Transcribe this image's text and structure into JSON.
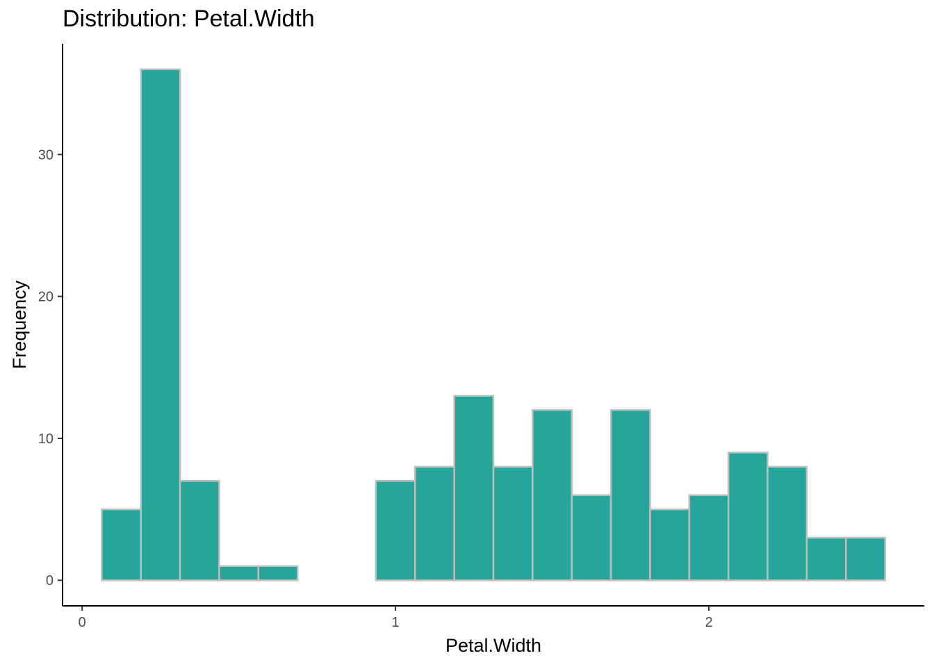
{
  "chart_data": {
    "type": "bar",
    "title": "Distribution: Petal.Width",
    "xlabel": "Petal.Width",
    "ylabel": "Frequency",
    "bins": [
      {
        "x0": 0.0625,
        "x1": 0.1875,
        "count": 5
      },
      {
        "x0": 0.1875,
        "x1": 0.3125,
        "count": 36
      },
      {
        "x0": 0.3125,
        "x1": 0.4375,
        "count": 7
      },
      {
        "x0": 0.4375,
        "x1": 0.5625,
        "count": 1
      },
      {
        "x0": 0.5625,
        "x1": 0.6875,
        "count": 1
      },
      {
        "x0": 0.6875,
        "x1": 0.8125,
        "count": 0
      },
      {
        "x0": 0.8125,
        "x1": 0.9375,
        "count": 0
      },
      {
        "x0": 0.9375,
        "x1": 1.0625,
        "count": 7
      },
      {
        "x0": 1.0625,
        "x1": 1.1875,
        "count": 8
      },
      {
        "x0": 1.1875,
        "x1": 1.3125,
        "count": 13
      },
      {
        "x0": 1.3125,
        "x1": 1.4375,
        "count": 8
      },
      {
        "x0": 1.4375,
        "x1": 1.5625,
        "count": 12
      },
      {
        "x0": 1.5625,
        "x1": 1.6875,
        "count": 6
      },
      {
        "x0": 1.6875,
        "x1": 1.8125,
        "count": 12
      },
      {
        "x0": 1.8125,
        "x1": 1.9375,
        "count": 5
      },
      {
        "x0": 1.9375,
        "x1": 2.0625,
        "count": 6
      },
      {
        "x0": 2.0625,
        "x1": 2.1875,
        "count": 9
      },
      {
        "x0": 2.1875,
        "x1": 2.3125,
        "count": 8
      },
      {
        "x0": 2.3125,
        "x1": 2.4375,
        "count": 3
      },
      {
        "x0": 2.4375,
        "x1": 2.5625,
        "count": 3
      }
    ],
    "xlim": [
      -0.0625,
      2.6875
    ],
    "ylim": [
      -1.8,
      37.8
    ],
    "xticks": [
      0,
      1,
      2
    ],
    "yticks": [
      0,
      10,
      20,
      30
    ],
    "fill_color": "#26a69a",
    "edge_color": "#bebebe",
    "grid": false,
    "legend": "none"
  }
}
